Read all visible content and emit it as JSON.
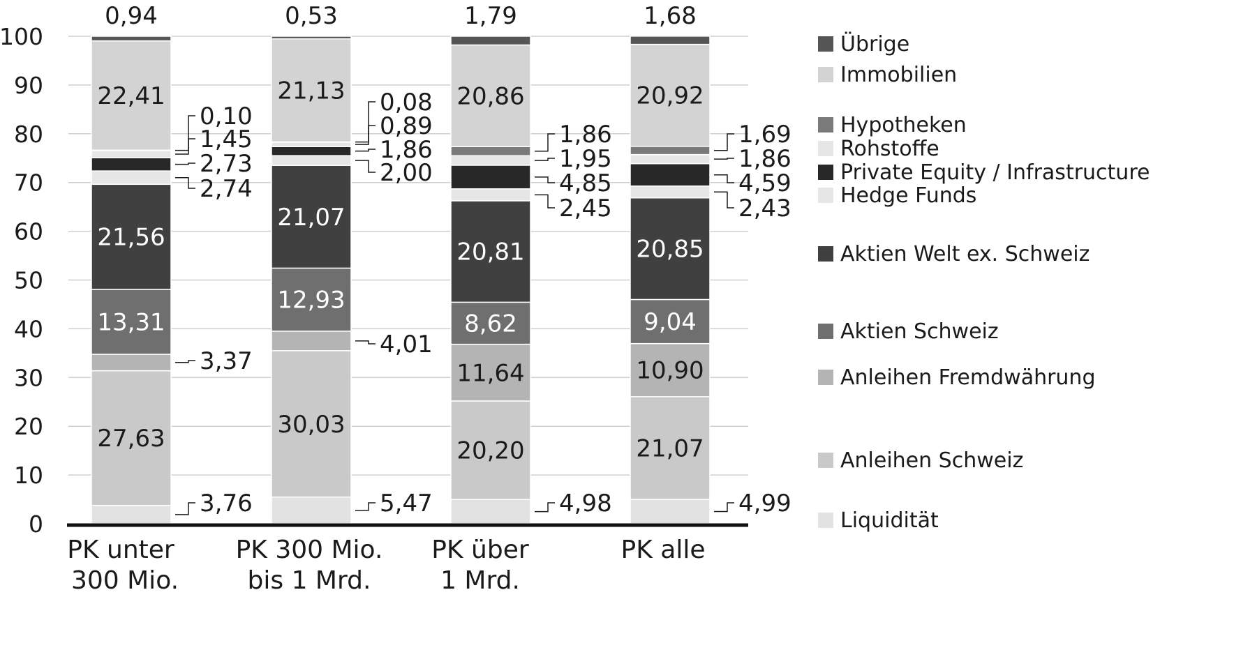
{
  "chart_data": {
    "type": "bar",
    "stacked": true,
    "ylim": [
      0,
      100
    ],
    "yticks": [
      "0",
      "10",
      "20",
      "30",
      "40",
      "50",
      "60",
      "70",
      "80",
      "90",
      "100"
    ],
    "grid": true,
    "legend_position": "right",
    "categories": [
      [
        "PK unter",
        "300 Mio."
      ],
      [
        "PK 300 Mio.",
        "bis 1 Mrd."
      ],
      [
        "PK über",
        "1 Mrd."
      ],
      [
        "PK alle"
      ]
    ],
    "series": [
      {
        "name": "Liquidität",
        "color": "#e2e2e2",
        "values": [
          3.76,
          5.47,
          4.98,
          4.99
        ],
        "labels": [
          "3,76",
          "5,47",
          "4,98",
          "4,99"
        ]
      },
      {
        "name": "Anleihen Schweiz",
        "color": "#c9c9c9",
        "values": [
          27.63,
          30.03,
          20.2,
          21.07
        ],
        "labels": [
          "27,63",
          "30,03",
          "20,20",
          "21,07"
        ]
      },
      {
        "name": "Anleihen Fremdwährung",
        "color": "#b4b4b4",
        "values": [
          3.37,
          4.01,
          11.64,
          10.9
        ],
        "labels": [
          "3,37",
          "4,01",
          "11,64",
          "10,90"
        ]
      },
      {
        "name": "Aktien Schweiz",
        "color": "#6f6f6f",
        "values": [
          13.31,
          12.93,
          8.62,
          9.04
        ],
        "labels": [
          "13,31",
          "12,93",
          "8,62",
          "9,04"
        ]
      },
      {
        "name": "Aktien Welt ex. Schweiz",
        "color": "#404040",
        "values": [
          21.56,
          21.07,
          20.81,
          20.85
        ],
        "labels": [
          "21,56",
          "21,07",
          "20,81",
          "20,85"
        ]
      },
      {
        "name": "Hedge Funds",
        "color": "#e6e6e6",
        "values": [
          2.74,
          2.0,
          2.45,
          2.43
        ],
        "labels": [
          "2,74",
          "2,00",
          "2,45",
          "2,43"
        ]
      },
      {
        "name": "Private Equity / Infrastructure",
        "color": "#282828",
        "values": [
          2.73,
          1.86,
          4.85,
          4.59
        ],
        "labels": [
          "2,73",
          "1,86",
          "4,85",
          "4,59"
        ]
      },
      {
        "name": "Rohstoffe",
        "color": "#e6e6e6",
        "values": [
          1.45,
          0.89,
          1.95,
          1.86
        ],
        "labels": [
          "1,45",
          "0,89",
          "1,95",
          "1,86"
        ]
      },
      {
        "name": "Hypotheken",
        "color": "#7a7a7a",
        "values": [
          0.1,
          0.08,
          1.86,
          1.69
        ],
        "labels": [
          "0,10",
          "0,08",
          "1,86",
          "1,69"
        ]
      },
      {
        "name": "Immobilien",
        "color": "#d3d3d3",
        "values": [
          22.41,
          21.13,
          20.86,
          20.92
        ],
        "labels": [
          "22,41",
          "21,13",
          "20,86",
          "20,92"
        ]
      },
      {
        "name": "Übrige",
        "color": "#555555",
        "values": [
          0.94,
          0.53,
          1.79,
          1.68
        ],
        "labels": [
          "0,94",
          "0,53",
          "1,79",
          "1,68"
        ]
      }
    ]
  }
}
